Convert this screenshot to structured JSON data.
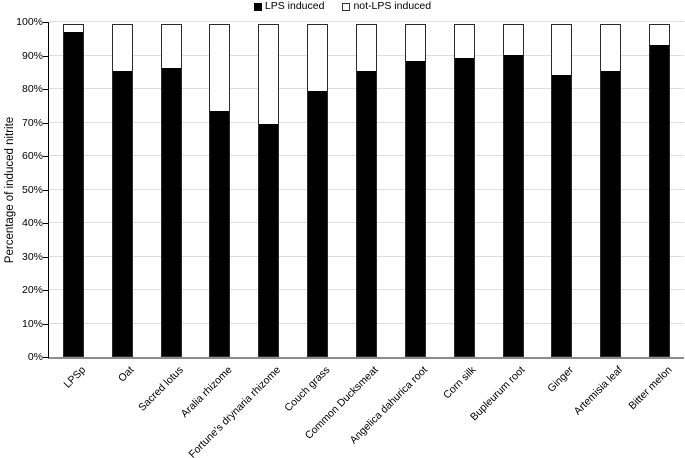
{
  "chart_data": {
    "type": "bar",
    "stacked": true,
    "title": "",
    "xlabel": "",
    "ylabel": "Percentage of induced nitrite",
    "ylim": [
      0,
      100
    ],
    "ytick_step": 10,
    "ytick_labels": [
      "0%",
      "10%",
      "20%",
      "30%",
      "40%",
      "50%",
      "60%",
      "70%",
      "80%",
      "90%",
      "100%"
    ],
    "grid": true,
    "legend_position": "top-center",
    "categories": [
      "LPSp",
      "Oat",
      "Sacred lotus",
      "Aralia rhizome",
      "Fortune's drynaria rhizome",
      "Couch grass",
      "Common Ducksmeat",
      "Angelica dahurica root",
      "Corn silk",
      "Bupleurum root",
      "Ginger",
      "Artemisia leaf",
      "Bitter melon"
    ],
    "series": [
      {
        "name": "LPS induced",
        "color": "#000000",
        "values": [
          98,
          86,
          87,
          74,
          70,
          80,
          86,
          89,
          90,
          91,
          85,
          86,
          94
        ]
      },
      {
        "name": "not-LPS induced",
        "color": "#ffffff",
        "values": [
          2,
          14,
          13,
          26,
          30,
          20,
          14,
          11,
          10,
          9,
          15,
          14,
          6
        ]
      }
    ]
  },
  "colors": {
    "gridline": "#dedede",
    "x_axis_line": "#8c8c8c",
    "y_axis_line": "#000000",
    "bar_border": "#2b2b2b",
    "bar_fill": "#000000",
    "text": "#000000"
  }
}
